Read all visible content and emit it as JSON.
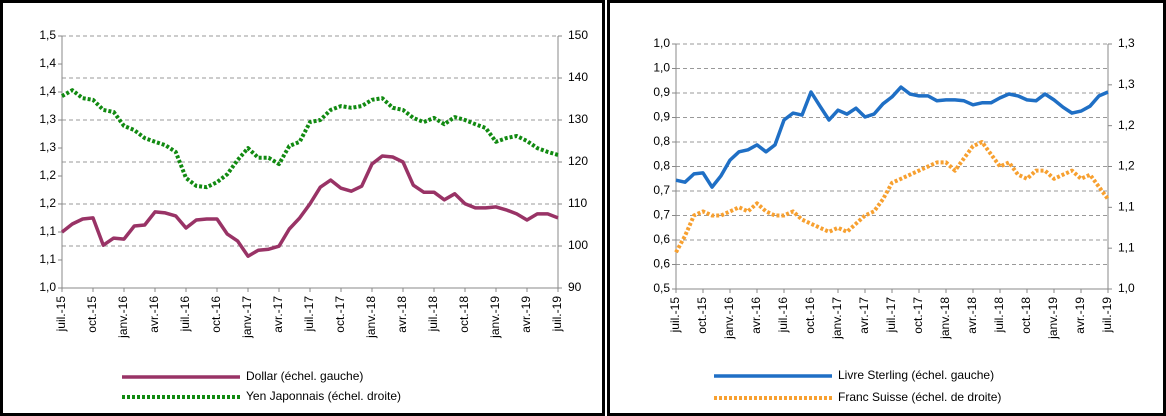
{
  "chart_data": [
    {
      "type": "line",
      "categories": [
        "juil.-15",
        null,
        null,
        "oct.-15",
        null,
        null,
        "janv.-16",
        null,
        null,
        "avr.-16",
        null,
        null,
        "juil.-16",
        null,
        null,
        "oct.-16",
        null,
        null,
        "janv.-17",
        null,
        null,
        "avr.-17",
        null,
        null,
        "juil.-17",
        null,
        null,
        "oct.-17",
        null,
        null,
        "janv.-18",
        null,
        null,
        "avr.-18",
        null,
        null,
        "juil.-18",
        null,
        null,
        "oct.-18",
        null,
        null,
        "janv.-19",
        null,
        null,
        "avr.-19",
        null,
        null,
        "juil.-19"
      ],
      "series": [
        {
          "name": "Dollar (échel. gauche)",
          "color": "#993366",
          "style": "solid",
          "values": [
            1.111,
            1.127,
            1.137,
            1.139,
            1.085,
            1.099,
            1.097,
            1.123,
            1.125,
            1.151,
            1.149,
            1.143,
            1.119,
            1.135,
            1.137,
            1.137,
            1.107,
            1.093,
            1.063,
            1.075,
            1.077,
            1.083,
            1.117,
            1.139,
            1.167,
            1.2,
            1.214,
            1.198,
            1.192,
            1.202,
            1.246,
            1.262,
            1.26,
            1.25,
            1.204,
            1.19,
            1.19,
            1.175,
            1.187,
            1.167,
            1.159,
            1.159,
            1.161,
            1.155,
            1.147,
            1.135,
            1.147,
            1.147,
            1.139
          ]
        },
        {
          "name": "Yen Japonnais (échel. droite)",
          "color": "#118a11",
          "style": "dotted",
          "axis": "y2",
          "values": [
            135.7,
            137.1,
            135.2,
            134.8,
            132.4,
            131.9,
            128.6,
            127.6,
            125.7,
            124.8,
            124.0,
            122.4,
            116.2,
            114.3,
            114.0,
            115.2,
            117.1,
            120.5,
            123.3,
            121.0,
            121.0,
            119.5,
            123.8,
            124.8,
            129.5,
            130.0,
            132.4,
            133.3,
            132.9,
            133.3,
            134.8,
            135.2,
            132.9,
            132.4,
            130.5,
            129.5,
            130.5,
            129.0,
            130.7,
            130.0,
            129.0,
            128.1,
            124.8,
            125.7,
            126.2,
            125.0,
            123.3,
            122.4,
            121.7
          ]
        }
      ],
      "ylim": [
        1.0,
        1.5
      ],
      "yticks": [
        {
          "value": 1.0,
          "label": "1,0"
        },
        {
          "value": 1.0556,
          "label": "1,1"
        },
        {
          "value": 1.1111,
          "label": "1,1"
        },
        {
          "value": 1.1667,
          "label": "1,2"
        },
        {
          "value": 1.2222,
          "label": "1,2"
        },
        {
          "value": 1.2778,
          "label": "1,3"
        },
        {
          "value": 1.3333,
          "label": "1,3"
        },
        {
          "value": 1.3889,
          "label": "1,4"
        },
        {
          "value": 1.4444,
          "label": "1,4"
        },
        {
          "value": 1.5,
          "label": "1,5"
        }
      ],
      "y2lim": [
        90,
        150
      ],
      "y2ticks": [
        90,
        100,
        110,
        120,
        130,
        140,
        150
      ],
      "grid": "y2"
    },
    {
      "type": "line",
      "categories": [
        "juil.-15",
        null,
        null,
        "oct.-15",
        null,
        null,
        "janv.-16",
        null,
        null,
        "avr.-16",
        null,
        null,
        "juil.-16",
        null,
        null,
        "oct.-16",
        null,
        null,
        "janv.-17",
        null,
        null,
        "avr.-17",
        null,
        null,
        "juil.-17",
        null,
        null,
        "oct.-17",
        null,
        null,
        "janv.-18",
        null,
        null,
        "avr.-18",
        null,
        null,
        "juil.-18",
        null,
        null,
        "oct.-18",
        null,
        null,
        "janv.-19",
        null,
        null,
        "avr.-19",
        null,
        null,
        "juil.-19"
      ],
      "series": [
        {
          "name": "Livre Sterling (échel. gauche)",
          "color": "#1f6fc5",
          "style": "solid",
          "values": [
            0.722,
            0.718,
            0.735,
            0.737,
            0.708,
            0.731,
            0.763,
            0.78,
            0.784,
            0.794,
            0.78,
            0.794,
            0.845,
            0.859,
            0.855,
            0.902,
            0.873,
            0.845,
            0.865,
            0.857,
            0.869,
            0.851,
            0.857,
            0.878,
            0.892,
            0.912,
            0.898,
            0.894,
            0.894,
            0.884,
            0.886,
            0.886,
            0.884,
            0.876,
            0.88,
            0.88,
            0.89,
            0.898,
            0.894,
            0.886,
            0.884,
            0.898,
            0.886,
            0.871,
            0.859,
            0.863,
            0.873,
            0.894,
            0.902
          ]
        },
        {
          "name": "Franc Suisse (échel. de droite)",
          "color": "#f7a030",
          "style": "dotted",
          "axis": "y2",
          "values": [
            1.045,
            1.065,
            1.09,
            1.095,
            1.09,
            1.09,
            1.095,
            1.1,
            1.095,
            1.105,
            1.095,
            1.09,
            1.09,
            1.095,
            1.085,
            1.08,
            1.075,
            1.07,
            1.075,
            1.07,
            1.08,
            1.09,
            1.095,
            1.11,
            1.13,
            1.135,
            1.14,
            1.145,
            1.15,
            1.155,
            1.155,
            1.145,
            1.16,
            1.175,
            1.18,
            1.165,
            1.15,
            1.155,
            1.14,
            1.135,
            1.145,
            1.145,
            1.135,
            1.14,
            1.145,
            1.135,
            1.14,
            1.125,
            1.11
          ]
        }
      ],
      "ylim": [
        0.5,
        1.0
      ],
      "yticks": [
        {
          "value": 0.5,
          "label": "0,5"
        },
        {
          "value": 0.55,
          "label": "0,6"
        },
        {
          "value": 0.6,
          "label": "0,6"
        },
        {
          "value": 0.65,
          "label": "0,7"
        },
        {
          "value": 0.7,
          "label": "0,7"
        },
        {
          "value": 0.75,
          "label": "0,8"
        },
        {
          "value": 0.8,
          "label": "0,8"
        },
        {
          "value": 0.85,
          "label": "0,9"
        },
        {
          "value": 0.9,
          "label": "0,9"
        },
        {
          "value": 0.95,
          "label": "1,0"
        },
        {
          "value": 1.0,
          "label": "1,0"
        }
      ],
      "y2lim": [
        1.0,
        1.3
      ],
      "y2ticks": [
        {
          "value": 1.0,
          "label": "1,0"
        },
        {
          "value": 1.05,
          "label": "1,1"
        },
        {
          "value": 1.1,
          "label": "1,1"
        },
        {
          "value": 1.15,
          "label": "1,2"
        },
        {
          "value": 1.2,
          "label": "1,2"
        },
        {
          "value": 1.25,
          "label": "1,3"
        },
        {
          "value": 1.3,
          "label": "1,3"
        }
      ],
      "grid": "y"
    }
  ]
}
